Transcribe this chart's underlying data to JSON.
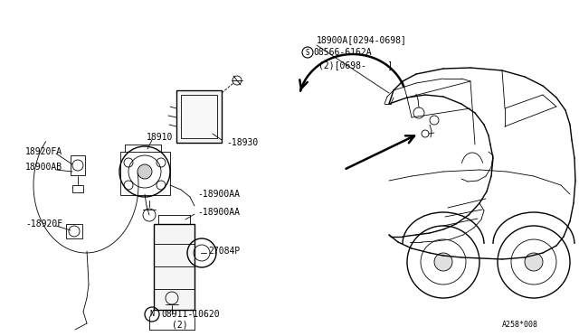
{
  "bg_color": "#ffffff",
  "line_color": "#000000",
  "figsize": [
    6.4,
    3.72
  ],
  "dpi": 100,
  "labels": {
    "top_part1": "18900A[0294-0698]",
    "top_part2": "08566-6162A",
    "top_part3": "(2)[0698-    ]",
    "label_18920FA": "18920FA",
    "label_18910": "18910",
    "label_18900AB": "18900AB",
    "label_18930": "18930",
    "label_18900AA_1": "18900AA",
    "label_18900AA_2": "18900AA",
    "label_18920F": "18920F",
    "label_27084P": "27084P",
    "label_bolt": "08911-10620",
    "label_bolt2": "(2)",
    "label_ref": "A258*008"
  }
}
